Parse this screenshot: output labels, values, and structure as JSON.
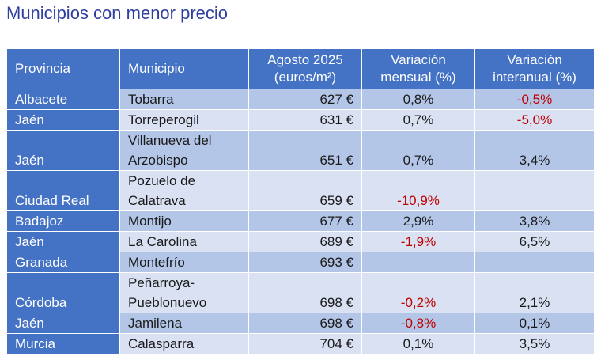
{
  "title": "Municipios con menor precio",
  "columns": {
    "provincia": "Provincia",
    "municipio": "Municipio",
    "precio_line1": "Agosto 2025",
    "precio_line2": "(euros/m²)",
    "mensual_line1": "Variación",
    "mensual_line2": "mensual (%)",
    "interanual_line1": "Variación",
    "interanual_line2": "interanual (%)"
  },
  "rows": [
    {
      "provincia": "Albacete",
      "municipio": "Tobarra",
      "precio": "627 €",
      "mensual": "0,8%",
      "interanual": "-0,5%"
    },
    {
      "provincia": "Jaén",
      "municipio": "Torreperogil",
      "precio": "631 €",
      "mensual": "0,7%",
      "interanual": "-5,0%"
    },
    {
      "provincia": "Jaén",
      "municipio_line1": "Villanueva del",
      "municipio_line2": "Arzobispo",
      "precio": "651 €",
      "mensual": "0,7%",
      "interanual": "3,4%"
    },
    {
      "provincia": "Ciudad Real",
      "municipio_line1": "Pozuelo de",
      "municipio_line2": "Calatrava",
      "precio": "659 €",
      "mensual": "-10,9%",
      "interanual": ""
    },
    {
      "provincia": "Badajoz",
      "municipio": "Montijo",
      "precio": "677 €",
      "mensual": "2,9%",
      "interanual": "3,8%"
    },
    {
      "provincia": "Jaén",
      "municipio": "La Carolina",
      "precio": "689 €",
      "mensual": "-1,9%",
      "interanual": "6,5%"
    },
    {
      "provincia": "Granada",
      "municipio": "Montefrío",
      "precio": "693 €",
      "mensual": "",
      "interanual": ""
    },
    {
      "provincia": "Córdoba",
      "municipio_line1": "Peñarroya-",
      "municipio_line2": "Pueblonuevo",
      "precio": "698 €",
      "mensual": "-0,2%",
      "interanual": "2,1%"
    },
    {
      "provincia": "Jaén",
      "municipio": "Jamilena",
      "precio": "698 €",
      "mensual": "-0,8%",
      "interanual": "0,1%"
    },
    {
      "provincia": "Murcia",
      "municipio": "Calasparra",
      "precio": "704 €",
      "mensual": "0,1%",
      "interanual": "3,5%"
    }
  ]
}
